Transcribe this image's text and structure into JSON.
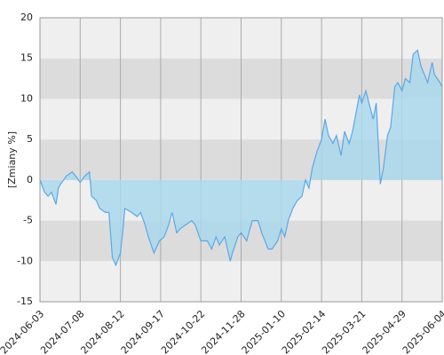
{
  "chart_data": {
    "type": "line",
    "y_label": "[Zmiany %]",
    "x": [
      "2024-06-03",
      "2024-06-07",
      "2024-06-10",
      "2024-06-13",
      "2024-06-17",
      "2024-06-19",
      "2024-06-21",
      "2024-06-26",
      "2024-07-01",
      "2024-07-04",
      "2024-07-08",
      "2024-07-12",
      "2024-07-16",
      "2024-07-18",
      "2024-07-22",
      "2024-07-25",
      "2024-07-30",
      "2024-08-02",
      "2024-08-05",
      "2024-08-08",
      "2024-08-12",
      "2024-08-14",
      "2024-08-16",
      "2024-08-22",
      "2024-08-27",
      "2024-08-30",
      "2024-09-03",
      "2024-09-06",
      "2024-09-11",
      "2024-09-16",
      "2024-09-20",
      "2024-09-24",
      "2024-09-27",
      "2024-10-01",
      "2024-10-04",
      "2024-10-09",
      "2024-10-14",
      "2024-10-17",
      "2024-10-22",
      "2024-10-28",
      "2024-11-01",
      "2024-11-05",
      "2024-11-08",
      "2024-11-13",
      "2024-11-18",
      "2024-11-20",
      "2024-11-25",
      "2024-11-28",
      "2024-12-04",
      "2024-12-10",
      "2024-12-16",
      "2024-12-20",
      "2024-12-27",
      "2024-12-31",
      "2025-01-06",
      "2025-01-10",
      "2025-01-13",
      "2025-01-16",
      "2025-01-20",
      "2025-01-24",
      "2025-01-28",
      "2025-01-31",
      "2025-02-03",
      "2025-02-06",
      "2025-02-10",
      "2025-02-14",
      "2025-02-17",
      "2025-02-20",
      "2025-02-24",
      "2025-02-27",
      "2025-03-03",
      "2025-03-06",
      "2025-03-10",
      "2025-03-13",
      "2025-03-17",
      "2025-03-19",
      "2025-03-21",
      "2025-03-25",
      "2025-03-28",
      "2025-04-01",
      "2025-04-04",
      "2025-04-08",
      "2025-04-11",
      "2025-04-15",
      "2025-04-18",
      "2025-04-22",
      "2025-04-25",
      "2025-04-29",
      "2025-05-02",
      "2025-05-06",
      "2025-05-09",
      "2025-05-13",
      "2025-05-16",
      "2025-05-19",
      "2025-05-22",
      "2025-05-26",
      "2025-05-28",
      "2025-06-02",
      "2025-06-04"
    ],
    "series": [
      {
        "name": "Zmiany",
        "color": "#5aa8e8",
        "fill": "#aad8ec",
        "values": [
          0,
          -1.5,
          -2,
          -1.5,
          -3,
          -1,
          -0.5,
          0.5,
          1,
          0.5,
          -0.3,
          0.5,
          1,
          -2,
          -2.5,
          -3.5,
          -4,
          -4,
          -9.5,
          -10.5,
          -9,
          -6.5,
          -3.5,
          -4,
          -4.5,
          -4,
          -5.5,
          -7,
          -9,
          -7.5,
          -7,
          -5.5,
          -4,
          -6.5,
          -6,
          -5.5,
          -5,
          -5.5,
          -7.5,
          -7.5,
          -8.5,
          -7,
          -8,
          -7,
          -10,
          -9,
          -7,
          -6.5,
          -7.5,
          -5,
          -5,
          -6.5,
          -8.5,
          -8.5,
          -7.5,
          -6,
          -7,
          -5,
          -3.5,
          -2.5,
          -2,
          0,
          -1,
          1.5,
          3.5,
          5,
          7.5,
          5.5,
          4.5,
          5.5,
          3,
          6,
          4.5,
          6,
          9,
          10.5,
          9.5,
          11,
          9.5,
          7.5,
          9.5,
          -0.5,
          1.5,
          5.5,
          6.5,
          11.5,
          12,
          11,
          12.5,
          12,
          15.5,
          16,
          14,
          13,
          12,
          14.5,
          13,
          12,
          11.5
        ]
      }
    ],
    "xlim": [
      "2024-06-03",
      "2025-06-04"
    ],
    "xticks": [
      "2024-06-03",
      "2024-07-08",
      "2024-08-12",
      "2024-09-17",
      "2024-10-22",
      "2024-11-28",
      "2025-01-10",
      "2025-02-14",
      "2025-03-21",
      "2025-04-29",
      "2025-06-04"
    ],
    "ylim": [
      -15,
      20
    ],
    "yticks": [
      -15,
      -10,
      -5,
      0,
      5,
      10,
      15,
      20
    ],
    "grid": true
  }
}
